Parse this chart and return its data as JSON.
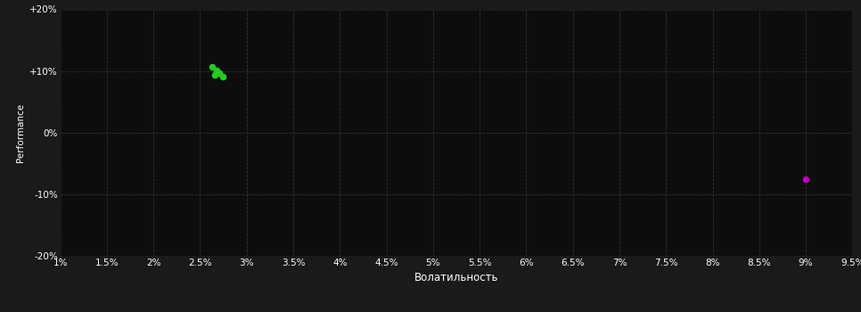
{
  "background_color": "#1a1a1a",
  "plot_bg_color": "#0d0d0d",
  "grid_color": "#333333",
  "grid_linestyle": "--",
  "xlabel": "Волатильность",
  "ylabel": "Performance",
  "xlim": [
    0.01,
    0.095
  ],
  "ylim": [
    -0.2,
    0.2
  ],
  "xticks": [
    0.01,
    0.015,
    0.02,
    0.025,
    0.03,
    0.035,
    0.04,
    0.045,
    0.05,
    0.055,
    0.06,
    0.065,
    0.07,
    0.075,
    0.08,
    0.085,
    0.09,
    0.095
  ],
  "xtick_labels": [
    "1%",
    "1.5%",
    "2%",
    "2.5%",
    "3%",
    "3.5%",
    "4%",
    "4.5%",
    "5%",
    "5.5%",
    "6%",
    "6.5%",
    "7%",
    "7.5%",
    "8%",
    "8.5%",
    "9%",
    "9.5%"
  ],
  "yticks": [
    -0.2,
    -0.1,
    0.0,
    0.1,
    0.2
  ],
  "ytick_labels": [
    "-20%",
    "-10%",
    "0%",
    "+10%",
    "+20%"
  ],
  "green_points": [
    [
      0.0263,
      0.106
    ],
    [
      0.0268,
      0.101
    ],
    [
      0.0271,
      0.097
    ],
    [
      0.0266,
      0.094
    ],
    [
      0.0274,
      0.091
    ]
  ],
  "green_color": "#22cc22",
  "purple_point": [
    0.09,
    -0.076
  ],
  "purple_color": "#bb00bb",
  "point_size": 20,
  "font_color": "#ffffff",
  "tick_fontsize": 7.5,
  "label_fontsize": 8.5,
  "ylabel_fontsize": 7.5
}
